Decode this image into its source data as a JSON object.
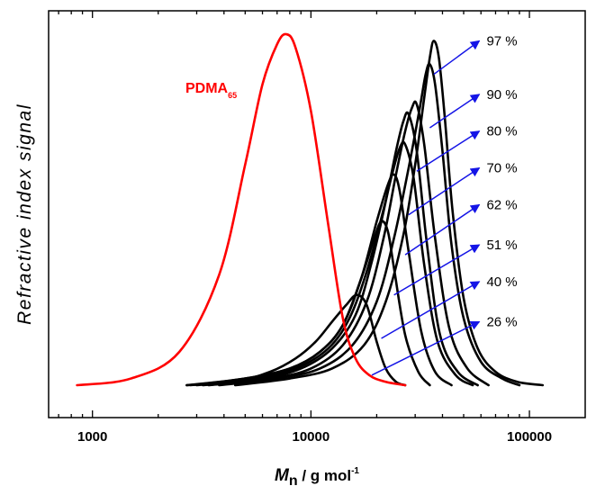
{
  "chart_data": {
    "type": "line",
    "xscale": "log",
    "xlim": [
      630,
      180000
    ],
    "ylim": [
      0,
      1.12
    ],
    "x_ticks": [
      1000,
      10000,
      100000
    ],
    "x_tick_labels": [
      "1000",
      "10000",
      "100000"
    ],
    "xlabel": {
      "symbol": "M",
      "subscript": "n",
      "rest": " / g mol",
      "superscript": "-1"
    },
    "ylabel": "Refractive index signal",
    "grid": false,
    "reference": {
      "label": "PDMA",
      "label_subscript": "65",
      "color": "#ff0000",
      "x": [
        850,
        1500,
        2500,
        3800,
        5000,
        6000,
        7000,
        7700,
        8500,
        10000,
        12000,
        14000,
        16000,
        18500,
        22000,
        27000
      ],
      "y": [
        0.0,
        0.02,
        0.1,
        0.33,
        0.66,
        0.9,
        1.02,
        1.05,
        1.01,
        0.82,
        0.48,
        0.2,
        0.08,
        0.03,
        0.01,
        0.0
      ]
    },
    "series": [
      {
        "label": "26 %",
        "color": "#000000",
        "x": [
          2700,
          4500,
          6500,
          8500,
          10500,
          12500,
          14500,
          16200,
          18000,
          20000,
          22000,
          24500,
          27000
        ],
        "y": [
          0.0,
          0.01,
          0.04,
          0.08,
          0.13,
          0.19,
          0.24,
          0.27,
          0.24,
          0.13,
          0.05,
          0.01,
          0.0
        ]
      },
      {
        "label": "40 %",
        "color": "#000000",
        "x": [
          2700,
          5000,
          8000,
          11000,
          14000,
          17000,
          19500,
          21000,
          22500,
          24000,
          27000,
          31000,
          35000
        ],
        "y": [
          0.0,
          0.02,
          0.05,
          0.1,
          0.18,
          0.32,
          0.44,
          0.49,
          0.46,
          0.35,
          0.15,
          0.04,
          0.0
        ]
      },
      {
        "label": "51 %",
        "color": "#000000",
        "x": [
          2800,
          5000,
          8000,
          11000,
          14000,
          17000,
          20000,
          22500,
          24000,
          25500,
          28000,
          32000,
          37000,
          44000
        ],
        "y": [
          0.0,
          0.02,
          0.05,
          0.1,
          0.18,
          0.32,
          0.49,
          0.6,
          0.63,
          0.58,
          0.4,
          0.16,
          0.04,
          0.0
        ]
      },
      {
        "label": "62 %",
        "color": "#000000",
        "x": [
          3000,
          5500,
          8500,
          12000,
          15000,
          18000,
          21000,
          23500,
          25500,
          27000,
          29500,
          33000,
          38000,
          46000,
          55000
        ],
        "y": [
          0.0,
          0.02,
          0.05,
          0.11,
          0.2,
          0.34,
          0.5,
          0.63,
          0.71,
          0.72,
          0.62,
          0.36,
          0.13,
          0.03,
          0.0
        ]
      },
      {
        "label": "70 %",
        "color": "#000000",
        "x": [
          3200,
          6000,
          9000,
          12500,
          16000,
          19000,
          22000,
          24500,
          26500,
          28000,
          30500,
          34000,
          39000,
          47000,
          58000
        ],
        "y": [
          0.0,
          0.02,
          0.05,
          0.11,
          0.21,
          0.37,
          0.55,
          0.7,
          0.79,
          0.81,
          0.7,
          0.42,
          0.15,
          0.04,
          0.0
        ]
      },
      {
        "label": "80 %",
        "color": "#000000",
        "x": [
          3400,
          6500,
          10000,
          14000,
          18000,
          21500,
          24500,
          27000,
          29000,
          30500,
          33000,
          37000,
          43000,
          52000,
          65000
        ],
        "y": [
          0.0,
          0.02,
          0.05,
          0.12,
          0.25,
          0.44,
          0.63,
          0.76,
          0.83,
          0.84,
          0.72,
          0.44,
          0.17,
          0.05,
          0.0
        ]
      },
      {
        "label": "90 %",
        "color": "#000000",
        "x": [
          3800,
          7000,
          11000,
          15500,
          20000,
          24000,
          28000,
          31500,
          33500,
          35000,
          37000,
          40000,
          44000,
          50000,
          60000,
          75000,
          90000
        ],
        "y": [
          0.0,
          0.02,
          0.05,
          0.12,
          0.25,
          0.44,
          0.65,
          0.83,
          0.93,
          0.96,
          0.9,
          0.7,
          0.42,
          0.2,
          0.07,
          0.02,
          0.0
        ]
      },
      {
        "label": "97 %",
        "color": "#000000",
        "x": [
          4500,
          8000,
          12500,
          17500,
          22000,
          26500,
          30000,
          33000,
          35000,
          36500,
          38500,
          41000,
          44500,
          50000,
          58000,
          70000,
          88000,
          115000
        ],
        "y": [
          0.0,
          0.02,
          0.05,
          0.12,
          0.25,
          0.45,
          0.66,
          0.86,
          0.98,
          1.03,
          0.98,
          0.8,
          0.52,
          0.26,
          0.11,
          0.04,
          0.01,
          0.0
        ]
      }
    ],
    "annotations": [
      {
        "text": "97 %",
        "from": [
          36500,
          0.93
        ],
        "to": [
          59000,
          1.03
        ]
      },
      {
        "text": "90 %",
        "from": [
          35000,
          0.77
        ],
        "to": [
          59000,
          0.87
        ]
      },
      {
        "text": "80 %",
        "from": [
          30500,
          0.64
        ],
        "to": [
          59000,
          0.76
        ]
      },
      {
        "text": "70 %",
        "from": [
          28000,
          0.51
        ],
        "to": [
          59000,
          0.65
        ]
      },
      {
        "text": "62 %",
        "from": [
          27000,
          0.39
        ],
        "to": [
          59000,
          0.54
        ]
      },
      {
        "text": "51 %",
        "from": [
          24000,
          0.27
        ],
        "to": [
          59000,
          0.42
        ]
      },
      {
        "text": "40 %",
        "from": [
          21000,
          0.14
        ],
        "to": [
          59000,
          0.31
        ]
      },
      {
        "text": "26 %",
        "from": [
          19000,
          0.03
        ],
        "to": [
          59000,
          0.19
        ]
      }
    ]
  }
}
